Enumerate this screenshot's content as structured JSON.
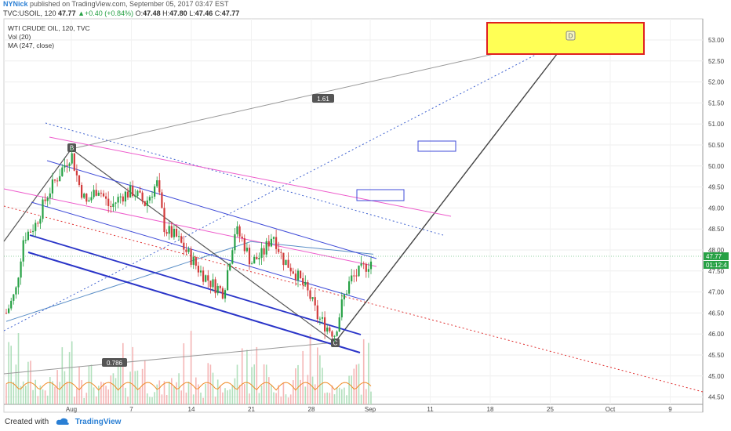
{
  "header": {
    "author": "NYNick",
    "published_text": "published on TradingView.com, September 05, 2017 03:47 EST"
  },
  "quote": {
    "symbol": "TVC:USOIL, 120",
    "last": "47.77",
    "change": "+0.40 (+0.84%)",
    "open_label": "O:",
    "open": "47.48",
    "high_label": "H:",
    "high": "47.80",
    "low_label": "L:",
    "low": "47.46",
    "close_label": "C:",
    "close": "47.77"
  },
  "legend": {
    "title": "WTI CRUDE OIL, 120, TVC",
    "vol": "Vol (20)",
    "ma": "MA (247, close)"
  },
  "footer": {
    "created_with": "Created with",
    "brand": "TradingView"
  },
  "chart_data": {
    "type": "candlestick",
    "y_axis": {
      "ticks": [
        "53.00",
        "52.50",
        "52.00",
        "51.50",
        "51.00",
        "50.50",
        "50.00",
        "49.50",
        "49.00",
        "48.50",
        "48.00",
        "47.50",
        "47.00",
        "46.50",
        "46.00",
        "45.50",
        "45.00",
        "44.50"
      ],
      "range": [
        44.25,
        53.3
      ],
      "last_price_label": "47.77",
      "countdown_label": "01:12:4"
    },
    "x_axis": {
      "ticks": [
        "Aug",
        "7",
        "14",
        "21",
        "28",
        "Sep",
        "11",
        "18",
        "25",
        "Oct",
        "9"
      ]
    },
    "annotations": {
      "fib_upper": "1.61",
      "fib_lower": "0.786",
      "pattern_points": [
        "B",
        "C",
        "D"
      ]
    },
    "colors": {
      "up": "#27a145",
      "down": "#d23b3b",
      "channel": "#3f4bd8",
      "pink": "#ee5ccc",
      "red_dotted": "#e03030",
      "blue_dotted": "#3f62d0",
      "pattern": "#555555",
      "ma": "#5b8fc7",
      "target_fill": "#ffff55",
      "target_border": "#e02020"
    }
  }
}
